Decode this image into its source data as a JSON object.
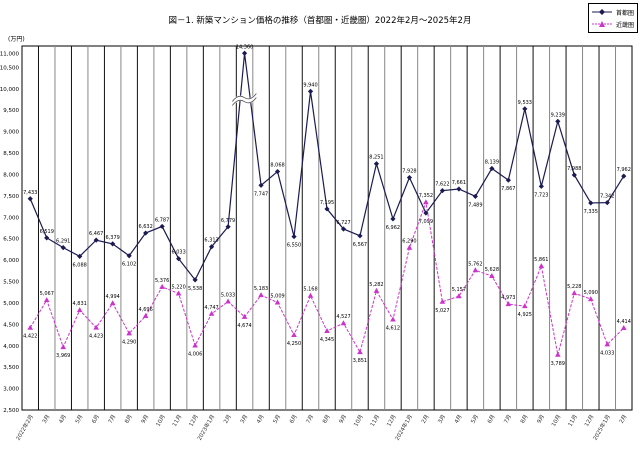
{
  "title": "図－1. 新築マンション価格の推移（首都圏・近畿圏）2022年2月～2025年2月",
  "unit": "(万円)",
  "legend": [
    {
      "label": "首都圏"
    },
    {
      "label": "近畿圏"
    }
  ],
  "colors": {
    "shutoken": "#1b1b52",
    "kinki": "#cc33cc"
  },
  "chart_data": {
    "type": "line",
    "title": "図－1. 新築マンション価格の推移（首都圏・近畿圏）2022年2月～2025年2月",
    "ylabel": "(万円)",
    "ylim": [
      2500,
      11000
    ],
    "yticks": [
      "2,500",
      "3,000",
      "3,500",
      "4,000",
      "4,500",
      "5,000",
      "5,500",
      "6,000",
      "6,500",
      "7,000",
      "7,500",
      "8,000",
      "8,500",
      "9,000",
      "9,500",
      "10,000",
      "10,500",
      "11,000"
    ],
    "ytick_values": [
      2500,
      3000,
      3500,
      4000,
      4500,
      5000,
      5500,
      6000,
      6500,
      7000,
      7500,
      8000,
      8500,
      9000,
      9500,
      10000,
      10500,
      11000
    ],
    "grid": "vertical",
    "legend_position": "top-right",
    "axis_break_note": "2023年3月 首都圏 14,360 exceeds axis (break mark)",
    "categories": [
      "2022年2月",
      "3月",
      "4月",
      "5月",
      "6月",
      "7月",
      "8月",
      "9月",
      "10月",
      "11月",
      "12月",
      "2023年1月",
      "2月",
      "3月",
      "4月",
      "5月",
      "6月",
      "7月",
      "8月",
      "9月",
      "10月",
      "11月",
      "12月",
      "2024年1月",
      "2月",
      "3月",
      "4月",
      "5月",
      "6月",
      "7月",
      "8月",
      "9月",
      "10月",
      "11月",
      "12月",
      "2025年1月",
      "2月"
    ],
    "series": [
      {
        "name": "首都圏",
        "marker": "diamond",
        "style": "solid",
        "values": [
          7433,
          6519,
          6291,
          6088,
          6467,
          6379,
          6102,
          6632,
          6787,
          6033,
          5538,
          6313,
          6779,
          14360,
          7747,
          8068,
          6550,
          9940,
          7195,
          6727,
          6567,
          8251,
          6962,
          7928,
          7099,
          7622,
          7661,
          7489,
          8139,
          7867,
          9533,
          7723,
          9239,
          7988,
          7335,
          7342,
          7962
        ]
      },
      {
        "name": "近畿圏",
        "marker": "triangle",
        "style": "dashed",
        "values": [
          4422,
          5067,
          3969,
          4831,
          4423,
          4994,
          4290,
          4696,
          5376,
          5220,
          4006,
          4747,
          5033,
          4674,
          5183,
          5009,
          4250,
          5168,
          4345,
          4527,
          3851,
          5282,
          4612,
          6290,
          7352,
          5027,
          5157,
          5762,
          5628,
          4973,
          4925,
          5861,
          3789,
          5228,
          5090,
          4033,
          4414
        ]
      }
    ]
  }
}
